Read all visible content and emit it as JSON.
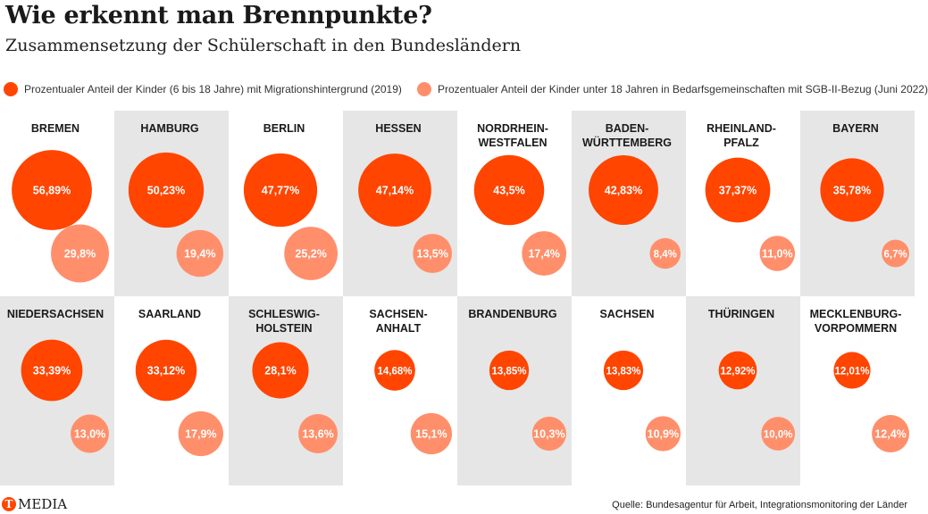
{
  "header": {
    "title": "Wie erkennt man Brennpunkte?",
    "subtitle": "Zusammensetzung der Schülerschaft in den Bundesländern"
  },
  "colors": {
    "migration": "#ff4500",
    "sgb": "#ff8f6b",
    "panel_grey": "#e6e6e6",
    "label_text": "#ffffff"
  },
  "footer": {
    "logo_letter": "T",
    "logo_text": "MEDIA",
    "source": "Quelle: Bundesagentur für Arbeit, Integrationsmonitoring der Länder"
  },
  "chart_data": {
    "type": "bubble-grid",
    "title": "Wie erkennt man Brennpunkte?",
    "subtitle": "Zusammensetzung der Schülerschaft in den Bundesländern",
    "legend_position": "top",
    "series": [
      {
        "key": "migration",
        "name": "Prozentualer Anteil der Kinder (6 bis 18 Jahre) mit Migrationshintergrund (2019)"
      },
      {
        "key": "sgb",
        "name": "Prozentualer Anteil der Kinder unter 18 Jahren in Bedarfsgemeinschaften mit SGB-II-Bezug (Juni 2022)"
      }
    ],
    "unit": "%",
    "states": [
      {
        "name": [
          "BREMEN"
        ],
        "migration": 56.89,
        "migration_label": "56,89%",
        "sgb": 29.8,
        "sgb_label": "29,8%"
      },
      {
        "name": [
          "HAMBURG"
        ],
        "migration": 50.23,
        "migration_label": "50,23%",
        "sgb": 19.4,
        "sgb_label": "19,4%"
      },
      {
        "name": [
          "BERLIN"
        ],
        "migration": 47.77,
        "migration_label": "47,77%",
        "sgb": 25.2,
        "sgb_label": "25,2%"
      },
      {
        "name": [
          "HESSEN"
        ],
        "migration": 47.14,
        "migration_label": "47,14%",
        "sgb": 13.5,
        "sgb_label": "13,5%"
      },
      {
        "name": [
          "NORDRHEIN-",
          "WESTFALEN"
        ],
        "migration": 43.5,
        "migration_label": "43,5%",
        "sgb": 17.4,
        "sgb_label": "17,4%"
      },
      {
        "name": [
          "BADEN-",
          "WÜRTTEMBERG"
        ],
        "migration": 42.83,
        "migration_label": "42,83%",
        "sgb": 8.4,
        "sgb_label": "8,4%"
      },
      {
        "name": [
          "RHEINLAND-",
          "PFALZ"
        ],
        "migration": 37.37,
        "migration_label": "37,37%",
        "sgb": 11.0,
        "sgb_label": "11,0%"
      },
      {
        "name": [
          "BAYERN"
        ],
        "migration": 35.78,
        "migration_label": "35,78%",
        "sgb": 6.7,
        "sgb_label": "6,7%"
      },
      {
        "name": [
          "NIEDERSACHSEN"
        ],
        "migration": 33.39,
        "migration_label": "33,39%",
        "sgb": 13.0,
        "sgb_label": "13,0%"
      },
      {
        "name": [
          "SAARLAND"
        ],
        "migration": 33.12,
        "migration_label": "33,12%",
        "sgb": 17.9,
        "sgb_label": "17,9%"
      },
      {
        "name": [
          "SCHLESWIG-",
          "HOLSTEIN"
        ],
        "migration": 28.1,
        "migration_label": "28,1%",
        "sgb": 13.6,
        "sgb_label": "13,6%"
      },
      {
        "name": [
          "SACHSEN-",
          "ANHALT"
        ],
        "migration": 14.68,
        "migration_label": "14,68%",
        "sgb": 15.1,
        "sgb_label": "15,1%"
      },
      {
        "name": [
          "BRANDENBURG"
        ],
        "migration": 13.85,
        "migration_label": "13,85%",
        "sgb": 10.3,
        "sgb_label": "10,3%"
      },
      {
        "name": [
          "SACHSEN"
        ],
        "migration": 13.83,
        "migration_label": "13,83%",
        "sgb": 10.9,
        "sgb_label": "10,9%"
      },
      {
        "name": [
          "THÜRINGEN"
        ],
        "migration": 12.92,
        "migration_label": "12,92%",
        "sgb": 10.0,
        "sgb_label": "10,0%"
      },
      {
        "name": [
          "MECKLENBURG-",
          "VORPOMMERN"
        ],
        "migration": 12.01,
        "migration_label": "12,01%",
        "sgb": 12.4,
        "sgb_label": "12,4%"
      }
    ]
  }
}
